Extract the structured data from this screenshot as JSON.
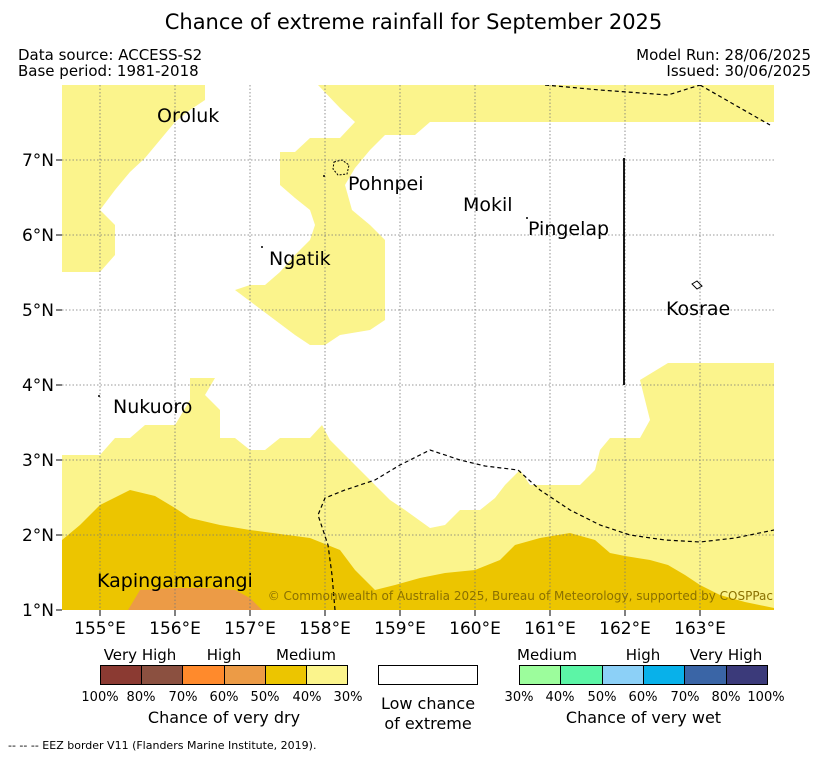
{
  "title": "Chance of extreme rainfall for September 2025",
  "header": {
    "data_source": "Data source: ACCESS-S2",
    "base_period": "Base period: 1981-2018",
    "model_run": "Model Run: 28/06/2025",
    "issued": "Issued: 30/06/2025"
  },
  "map": {
    "lat_labels": [
      "7°N",
      "6°N",
      "5°N",
      "4°N",
      "3°N",
      "2°N",
      "1°N"
    ],
    "lon_labels": [
      "155°E",
      "156°E",
      "157°E",
      "158°E",
      "159°E",
      "160°E",
      "161°E",
      "162°E",
      "163°E"
    ],
    "places": [
      "Oroluk",
      "Pohnpei",
      "Mokil",
      "Pingelap",
      "Ngatik",
      "Kosrae",
      "Nukuoro",
      "Kapingamarangi"
    ],
    "copyright": "© Commonwealth of Australia 2025, Bureau of Meteorology, supported by COSPPac",
    "colors": {
      "medium_dry": "#fbf48c",
      "high_dry": "#ecc500",
      "high2_dry": "#ec9b46",
      "very_high_dry": "#ff8a2c"
    }
  },
  "legend": {
    "dry": {
      "categories": [
        "Very High",
        "High",
        "Medium"
      ],
      "percents": [
        "100%",
        "80%",
        "70%",
        "60%",
        "50%",
        "40%",
        "30%"
      ],
      "colors": [
        "#8b3a32",
        "#8b5040",
        "#ff8a2c",
        "#ec9b46",
        "#ecc500",
        "#fbf48c"
      ],
      "caption": "Chance of very dry"
    },
    "low": {
      "caption_line1": "Low chance",
      "caption_line2": "of extreme"
    },
    "wet": {
      "categories": [
        "Medium",
        "High",
        "Very High"
      ],
      "percents": [
        "30%",
        "40%",
        "50%",
        "60%",
        "70%",
        "80%",
        "100%"
      ],
      "colors": [
        "#9cfd9c",
        "#5cf5a6",
        "#8cd0f7",
        "#08b1ea",
        "#3a65a6",
        "#3b3a7a"
      ],
      "caption": "Chance of very wet"
    }
  },
  "footer": "--  --  -- EEZ border V11 (Flanders Marine Institute, 2019)."
}
